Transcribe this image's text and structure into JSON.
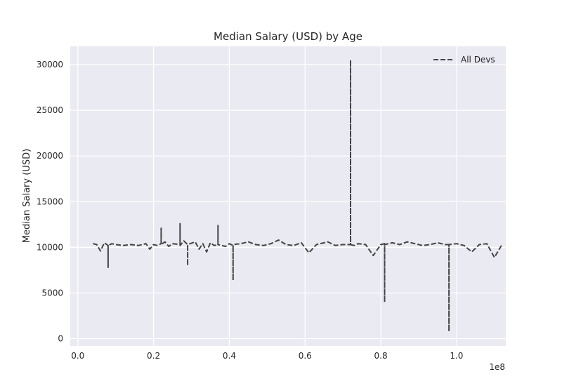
{
  "chart_data": {
    "type": "line",
    "title": "Median Salary (USD) by Age",
    "xlabel": "",
    "ylabel": "Median Salary (USD)",
    "x_offset_label": "1e8",
    "xlim": [
      -0.02,
      1.13
    ],
    "ylim": [
      -800,
      32000
    ],
    "x_ticks": [
      0.0,
      0.2,
      0.4,
      0.6,
      0.8,
      1.0
    ],
    "x_tick_labels": [
      "0.0",
      "0.2",
      "0.4",
      "0.6",
      "0.8",
      "1.0"
    ],
    "y_ticks": [
      0,
      5000,
      10000,
      15000,
      20000,
      25000,
      30000
    ],
    "y_tick_labels": [
      "0",
      "5000",
      "10000",
      "15000",
      "20000",
      "25000",
      "30000"
    ],
    "grid": true,
    "legend_position": "upper right",
    "colors": {
      "plot_background": "#eaeaf2",
      "grid": "#ffffff",
      "line": "#444444",
      "text": "#262626"
    },
    "series": [
      {
        "name": "All Devs",
        "line_style": "dashed",
        "x": [
          0.04,
          0.05,
          0.06,
          0.07,
          0.08,
          0.08,
          0.08,
          0.09,
          0.1,
          0.12,
          0.14,
          0.16,
          0.18,
          0.19,
          0.2,
          0.21,
          0.22,
          0.22,
          0.22,
          0.23,
          0.24,
          0.25,
          0.27,
          0.27,
          0.27,
          0.28,
          0.29,
          0.29,
          0.29,
          0.31,
          0.32,
          0.33,
          0.34,
          0.35,
          0.36,
          0.37,
          0.37,
          0.37,
          0.39,
          0.4,
          0.41,
          0.41,
          0.41,
          0.43,
          0.45,
          0.47,
          0.49,
          0.51,
          0.53,
          0.55,
          0.57,
          0.59,
          0.61,
          0.63,
          0.66,
          0.68,
          0.7,
          0.72,
          0.72,
          0.72,
          0.73,
          0.74,
          0.76,
          0.78,
          0.8,
          0.81,
          0.81,
          0.81,
          0.83,
          0.85,
          0.87,
          0.89,
          0.91,
          0.93,
          0.95,
          0.97,
          0.98,
          0.98,
          0.98,
          1.0,
          1.02,
          1.04,
          1.06,
          1.08,
          1.1,
          1.12
        ],
        "y": [
          10400,
          10300,
          9600,
          10500,
          10200,
          7800,
          10200,
          10400,
          10300,
          10200,
          10300,
          10200,
          10400,
          9800,
          10300,
          10200,
          10400,
          12100,
          10300,
          10600,
          10100,
          10400,
          10300,
          12600,
          10200,
          10700,
          10300,
          8000,
          10300,
          10600,
          9800,
          10400,
          9500,
          10500,
          10200,
          10300,
          12400,
          10300,
          10100,
          10400,
          10200,
          6400,
          10300,
          10400,
          10600,
          10300,
          10200,
          10400,
          10800,
          10300,
          10200,
          10500,
          9400,
          10300,
          10600,
          10200,
          10300,
          10300,
          30500,
          10300,
          10200,
          10400,
          10300,
          9100,
          10300,
          10400,
          4000,
          10300,
          10500,
          10300,
          10600,
          10400,
          10200,
          10300,
          10500,
          10300,
          10300,
          800,
          10300,
          10400,
          10200,
          9500,
          10300,
          10400,
          8900,
          10300
        ]
      }
    ]
  }
}
